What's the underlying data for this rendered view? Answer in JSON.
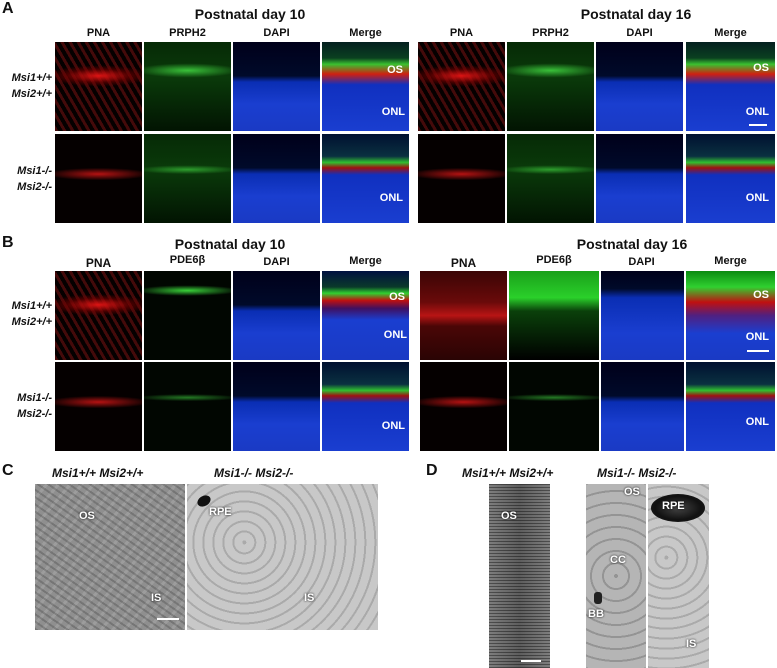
{
  "panelA": {
    "letter": "A",
    "title_left": "Postnatal day 10",
    "title_right": "Postnatal day 16",
    "columns": [
      "PNA",
      "PRPH2",
      "DAPI",
      "Merge"
    ],
    "row1_label_line1": "Msi1+/+",
    "row1_label_line2": "Msi2+/+",
    "row2_label_line1": "Msi1-/-",
    "row2_label_line2": "Msi2-/-",
    "label_os": "OS",
    "label_onl": "ONL"
  },
  "panelB": {
    "letter": "B",
    "title_left": "Postnatal day 10",
    "title_right": "Postnatal day 16",
    "columns": [
      "PNA",
      "PDE6β",
      "DAPI",
      "Merge"
    ],
    "row1_label_line1": "Msi1+/+",
    "row1_label_line2": "Msi2+/+",
    "row2_label_line1": "Msi1-/-",
    "row2_label_line2": "Msi2-/-",
    "label_os": "OS",
    "label_onl": "ONL"
  },
  "panelC": {
    "letter": "C",
    "head_wt": "Msi1+/+ Msi2+/+",
    "head_ko": "Msi1-/- Msi2-/-",
    "label_os": "OS",
    "label_is_wt": "IS",
    "label_rpe": "RPE",
    "label_is_ko": "IS"
  },
  "panelD": {
    "letter": "D",
    "head_wt": "Msi1+/+ Msi2+/+",
    "head_ko": "Msi1-/- Msi2-/-",
    "label_os_wt": "OS",
    "label_os_ko": "OS",
    "label_cc": "CC",
    "label_bb": "BB",
    "label_rpe": "RPE",
    "label_is": "IS"
  }
}
